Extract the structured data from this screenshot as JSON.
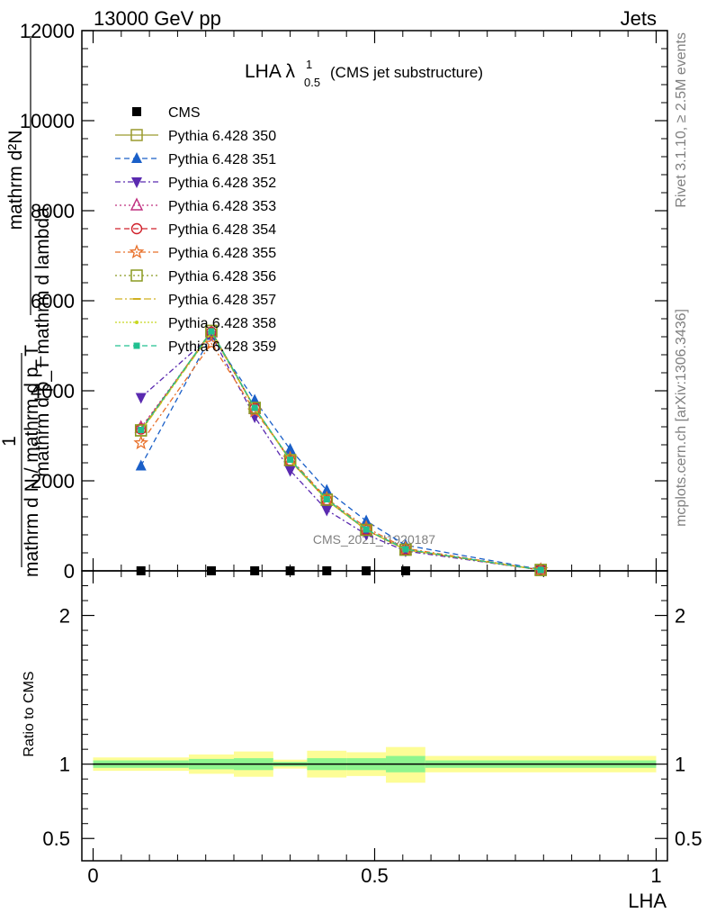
{
  "header": {
    "energy": "13000 GeV pp",
    "category": "Jets"
  },
  "side_labels": {
    "rivet": "Rivet 3.1.10, ≥ 2.5M events",
    "mcplots": "mcplots.cern.ch [arXiv:1306.3436]"
  },
  "watermark": "CMS_2021_I1920187",
  "plot_title": {
    "main": "LHA λ",
    "sup": "1",
    "sub": "0.5",
    "suffix": "(CMS jet substructure)"
  },
  "ylabel": {
    "top": "mathrm d²N",
    "bottom": "mathrm d p_T mathrm d lambda",
    "prefix": "1",
    "prefix_den": "mathrm d N / mathrm d p_T"
  },
  "chart_data": [
    {
      "type": "line",
      "title": "LHA λ^1_0.5 (CMS jet substructure)",
      "xlabel": "LHA",
      "ylabel": "1/(mathrm d N / mathrm d p_T) mathrm d²N/(mathrm d p_T mathrm d lambda)",
      "xlim": [
        -0.02,
        1.02
      ],
      "ylim": [
        0,
        12000
      ],
      "y_ticks": [
        0,
        2000,
        4000,
        6000,
        8000,
        10000,
        12000
      ],
      "x": [
        0.085,
        0.21,
        0.287,
        0.35,
        0.415,
        0.485,
        0.555,
        0.795
      ],
      "series": [
        {
          "name": "CMS",
          "color": "#000000",
          "marker": "square-filled",
          "dash": "none",
          "values": [
            1,
            1,
            1,
            1,
            1,
            1,
            1,
            1
          ]
        },
        {
          "name": "Pythia 6.428 350",
          "color": "#9a9a2e",
          "marker": "square-open",
          "dash": "solid",
          "values": [
            3120,
            5330,
            3620,
            2460,
            1580,
            910,
            470,
            20
          ]
        },
        {
          "name": "Pythia 6.428 351",
          "color": "#1a5fc8",
          "marker": "triangle-up-filled",
          "dash": "6,4",
          "values": [
            2330,
            5230,
            3790,
            2700,
            1790,
            1110,
            570,
            30
          ]
        },
        {
          "name": "Pythia 6.428 352",
          "color": "#5a2ab0",
          "marker": "triangle-down-filled",
          "dash": "6,3,2,3",
          "values": [
            3850,
            5230,
            3420,
            2230,
            1350,
            810,
            440,
            20
          ]
        },
        {
          "name": "Pythia 6.428 353",
          "color": "#c03080",
          "marker": "triangle-up-open",
          "dash": "2,3",
          "values": [
            3180,
            5300,
            3600,
            2450,
            1570,
            910,
            470,
            20
          ]
        },
        {
          "name": "Pythia 6.428 354",
          "color": "#d0202a",
          "marker": "circle-open",
          "dash": "6,4",
          "values": [
            3150,
            5300,
            3610,
            2450,
            1570,
            910,
            470,
            20
          ]
        },
        {
          "name": "Pythia 6.428 355",
          "color": "#e8702a",
          "marker": "star-open",
          "dash": "6,3,2,3",
          "values": [
            2840,
            5050,
            3550,
            2500,
            1610,
            960,
            500,
            20
          ]
        },
        {
          "name": "Pythia 6.428 356",
          "color": "#8a9a20",
          "marker": "square-open",
          "dash": "2,3",
          "values": [
            3120,
            5330,
            3620,
            2460,
            1580,
            910,
            470,
            20
          ]
        },
        {
          "name": "Pythia 6.428 357",
          "color": "#d0b020",
          "marker": "dash-line",
          "dash": "8,3,2,3",
          "values": [
            3100,
            5290,
            3610,
            2450,
            1570,
            910,
            470,
            20
          ]
        },
        {
          "name": "Pythia 6.428 358",
          "color": "#c8d820",
          "marker": "dot",
          "dash": "2,2",
          "values": [
            3110,
            5300,
            3610,
            2450,
            1570,
            910,
            470,
            20
          ]
        },
        {
          "name": "Pythia 6.428 359",
          "color": "#20c090",
          "marker": "square-small-filled",
          "dash": "6,4",
          "values": [
            3130,
            5320,
            3620,
            2470,
            1590,
            920,
            480,
            20
          ]
        }
      ]
    },
    {
      "type": "area",
      "title": "",
      "xlabel": "LHA",
      "ylabel": "Ratio to CMS",
      "xlim": [
        -0.02,
        1.02
      ],
      "ylim": [
        0.35,
        2.3
      ],
      "y_ticks": [
        0.5,
        1,
        2
      ],
      "y_tick_labels": [
        "0.5",
        "1",
        "2"
      ],
      "x_ticks": [
        0,
        0.5,
        1
      ],
      "x_tick_labels": [
        "0",
        "0.5",
        "1"
      ],
      "bins": [
        {
          "x_low": 0.0,
          "x_high": 0.17,
          "inner": [
            0.975,
            1.025
          ],
          "outer": [
            0.955,
            1.045
          ]
        },
        {
          "x_low": 0.17,
          "x_high": 0.25,
          "inner": [
            0.965,
            1.035
          ],
          "outer": [
            0.935,
            1.065
          ]
        },
        {
          "x_low": 0.25,
          "x_high": 0.32,
          "inner": [
            0.96,
            1.04
          ],
          "outer": [
            0.915,
            1.085
          ]
        },
        {
          "x_low": 0.32,
          "x_high": 0.38,
          "inner": [
            0.985,
            1.015
          ],
          "outer": [
            0.97,
            1.03
          ]
        },
        {
          "x_low": 0.38,
          "x_high": 0.45,
          "inner": [
            0.96,
            1.04
          ],
          "outer": [
            0.91,
            1.09
          ]
        },
        {
          "x_low": 0.45,
          "x_high": 0.52,
          "inner": [
            0.96,
            1.04
          ],
          "outer": [
            0.92,
            1.08
          ]
        },
        {
          "x_low": 0.52,
          "x_high": 0.59,
          "inner": [
            0.945,
            1.055
          ],
          "outer": [
            0.875,
            1.115
          ]
        },
        {
          "x_low": 0.59,
          "x_high": 1.0,
          "inner": [
            0.975,
            1.025
          ],
          "outer": [
            0.945,
            1.055
          ]
        }
      ],
      "band_colors": {
        "inner": "#8ef58e",
        "outer": "#fdfd96"
      }
    }
  ]
}
